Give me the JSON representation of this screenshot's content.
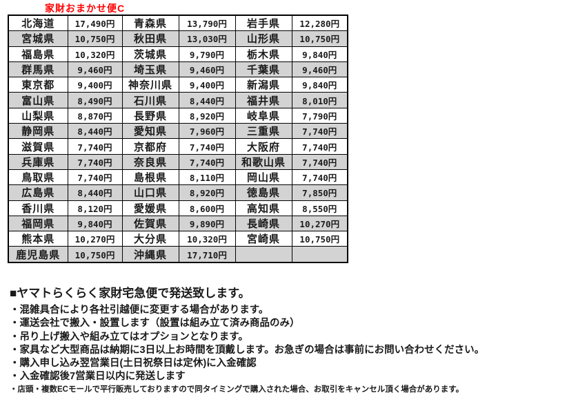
{
  "title": "家財おまかせ便C",
  "colors": {
    "accent_red": "#ff0000",
    "row_alt_gray": "#d3d3d3",
    "border": "#000000"
  },
  "table": {
    "columns": [
      "prefecture",
      "price",
      "prefecture",
      "price",
      "prefecture",
      "price"
    ],
    "rows": [
      [
        "北海道",
        "17,490円",
        "青森県",
        "13,790円",
        "岩手県",
        "12,280円"
      ],
      [
        "宮城県",
        "10,750円",
        "秋田県",
        "13,030円",
        "山形県",
        "10,750円"
      ],
      [
        "福島県",
        "10,320円",
        "茨城県",
        "9,790円",
        "栃木県",
        "9,840円"
      ],
      [
        "群馬県",
        "9,460円",
        "埼玉県",
        "9,460円",
        "千葉県",
        "9,460円"
      ],
      [
        "東京都",
        "9,400円",
        "神奈川県",
        "9,400円",
        "新潟県",
        "9,840円"
      ],
      [
        "富山県",
        "8,490円",
        "石川県",
        "8,440円",
        "福井県",
        "8,010円"
      ],
      [
        "山梨県",
        "8,870円",
        "長野県",
        "8,920円",
        "岐阜県",
        "7,790円"
      ],
      [
        "静岡県",
        "8,440円",
        "愛知県",
        "7,960円",
        "三重県",
        "7,740円"
      ],
      [
        "滋賀県",
        "7,740円",
        "京都府",
        "7,740円",
        "大阪府",
        "7,740円"
      ],
      [
        "兵庫県",
        "7,740円",
        "奈良県",
        "7,740円",
        "和歌山県",
        "7,740円"
      ],
      [
        "鳥取県",
        "7,740円",
        "島根県",
        "8,110円",
        "岡山県",
        "7,740円"
      ],
      [
        "広島県",
        "8,440円",
        "山口県",
        "8,920円",
        "徳島県",
        "7,850円"
      ],
      [
        "香川県",
        "8,120円",
        "愛媛県",
        "8,600円",
        "高知県",
        "8,550円"
      ],
      [
        "福岡県",
        "9,840円",
        "佐賀県",
        "9,890円",
        "長崎県",
        "10,270円"
      ],
      [
        "熊本県",
        "10,270円",
        "大分県",
        "10,320円",
        "宮崎県",
        "10,750円"
      ],
      [
        "鹿児島県",
        "10,750円",
        "沖縄県",
        "17,710円",
        "",
        ""
      ]
    ]
  },
  "notes": {
    "heading": "■ヤマトらくらく家財宅急便で発送致します。",
    "bullets": [
      "・混雑具合により各社引越便に変更する場合があります。",
      "・運送会社で搬入・設置します（設置は組み立て済み商品のみ）",
      "・吊り上げ搬入や組み立てはオプションとなります。",
      "・家具など大型商品は納期に3日以上お時間を頂戴します。お急ぎの場合は事前にお問い合わせください。",
      "・購入申し込み翌営業日(土日祝祭日は定休)に入金確認",
      "・入金確認後7営業日以内に発送します"
    ],
    "footnote": "・店頭・複数ECモールで平行販売しておりますので同タイミングで購入された場合、お取引をキャンセル頂く場合があります。"
  }
}
